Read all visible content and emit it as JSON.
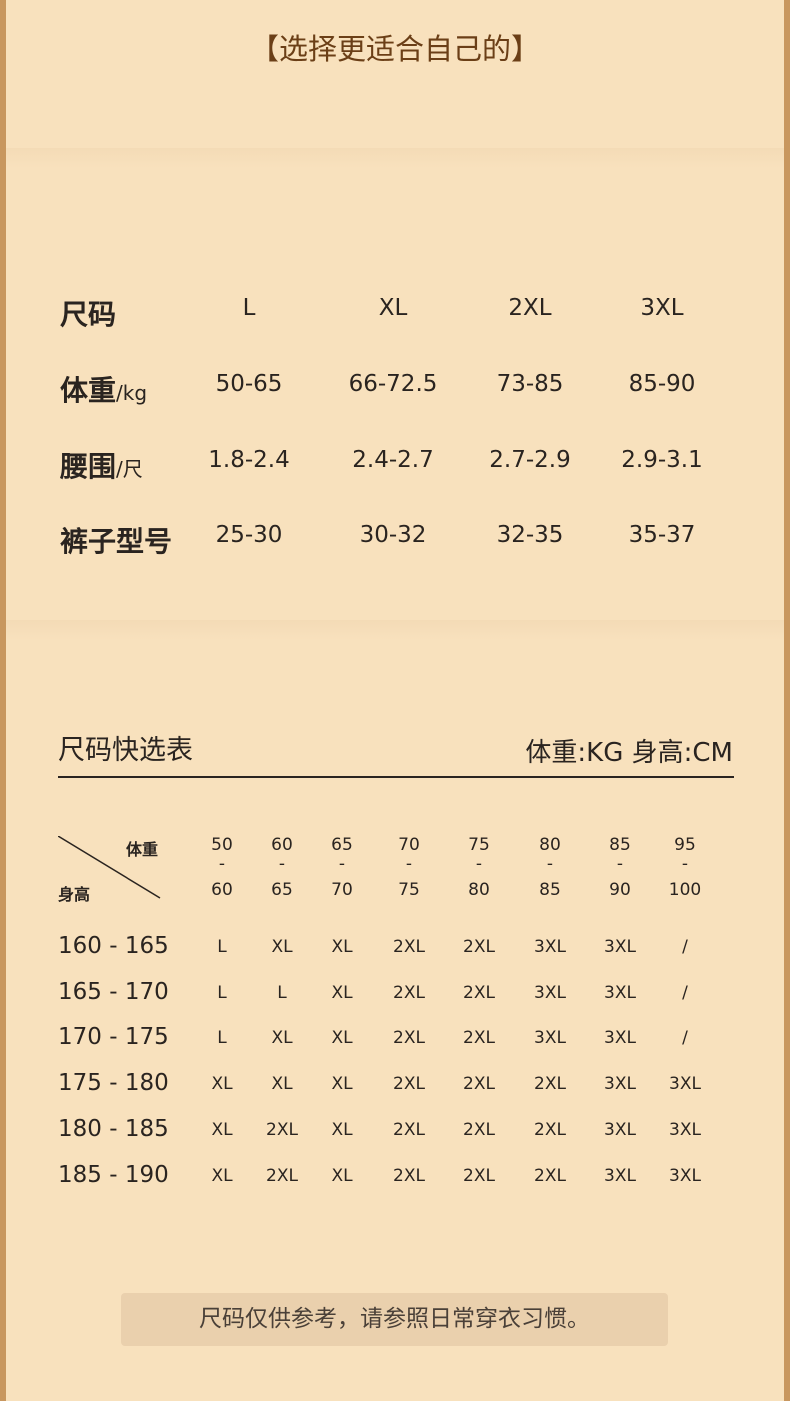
{
  "title": "【选择更适合自己的】",
  "size_table": {
    "header_label": "尺码",
    "sizes": [
      "L",
      "XL",
      "2XL",
      "3XL"
    ],
    "rows": [
      {
        "label": "体重",
        "unit": "/kg",
        "values": [
          "50-65",
          "66-72.5",
          "73-85",
          "85-90"
        ]
      },
      {
        "label": "腰围",
        "unit": "/尺",
        "values": [
          "1.8-2.4",
          "2.4-2.7",
          "2.7-2.9",
          "2.9-3.1"
        ]
      },
      {
        "label": "裤子型号",
        "unit": "",
        "values": [
          "25-30",
          "30-32",
          "32-35",
          "35-37"
        ]
      }
    ]
  },
  "quick_table": {
    "title": "尺码快选表",
    "units": "体重:KG  身高:CM",
    "corner_weight": "体重",
    "corner_height": "身高",
    "weight_ranges": [
      {
        "from": "50",
        "sep": "-",
        "to": "60"
      },
      {
        "from": "60",
        "sep": "-",
        "to": "65"
      },
      {
        "from": "65",
        "sep": "-",
        "to": "70"
      },
      {
        "from": "70",
        "sep": "-",
        "to": "75"
      },
      {
        "from": "75",
        "sep": "-",
        "to": "80"
      },
      {
        "from": "80",
        "sep": "-",
        "to": "85"
      },
      {
        "from": "85",
        "sep": "-",
        "to": "90"
      },
      {
        "from": "95",
        "sep": "-",
        "to": "100"
      }
    ],
    "rows": [
      {
        "height": "160 - 165",
        "sizes": [
          "L",
          "XL",
          "XL",
          "2XL",
          "2XL",
          "3XL",
          "3XL",
          "/"
        ]
      },
      {
        "height": "165 - 170",
        "sizes": [
          "L",
          "L",
          "XL",
          "2XL",
          "2XL",
          "3XL",
          "3XL",
          "/"
        ]
      },
      {
        "height": "170 - 175",
        "sizes": [
          "L",
          "XL",
          "XL",
          "2XL",
          "2XL",
          "3XL",
          "3XL",
          "/"
        ]
      },
      {
        "height": "175 - 180",
        "sizes": [
          "XL",
          "XL",
          "XL",
          "2XL",
          "2XL",
          "2XL",
          "3XL",
          "3XL"
        ]
      },
      {
        "height": "180 - 185",
        "sizes": [
          "XL",
          "2XL",
          "XL",
          "2XL",
          "2XL",
          "2XL",
          "3XL",
          "3XL"
        ]
      },
      {
        "height": "185 - 190",
        "sizes": [
          "XL",
          "2XL",
          "XL",
          "2XL",
          "2XL",
          "2XL",
          "3XL",
          "3XL"
        ]
      }
    ]
  },
  "note": "尺码仅供参考，请参照日常穿衣习惯。"
}
